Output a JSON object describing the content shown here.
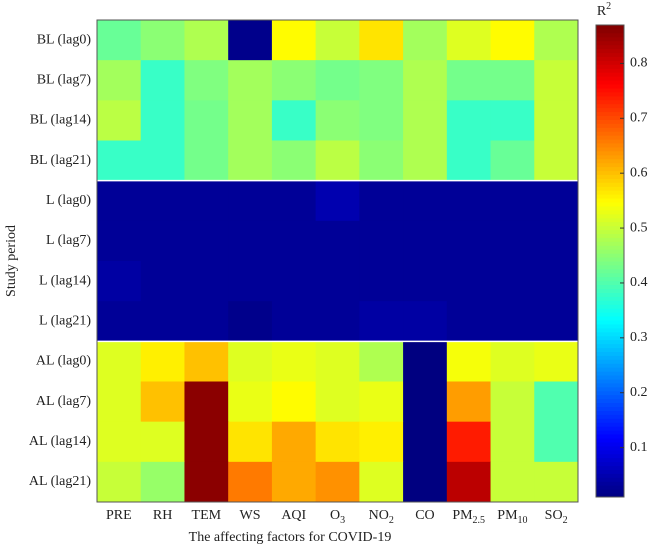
{
  "chart_data": {
    "type": "heatmap",
    "colorbar_title": {
      "text": "R",
      "sup": "2"
    },
    "xlabel": "The affecting factors for  COVID-19",
    "ylabel": "Study period",
    "colormap": "jet",
    "clim": [
      0.01,
      0.87
    ],
    "cticks": [
      0.1,
      0.2,
      0.3,
      0.4,
      0.5,
      0.6,
      0.7,
      0.8
    ],
    "x": [
      {
        "text": "PRE"
      },
      {
        "text": "RH"
      },
      {
        "text": "TEM"
      },
      {
        "text": "WS"
      },
      {
        "text": "AQI"
      },
      {
        "text": "O",
        "sub": "3"
      },
      {
        "text": "NO",
        "sub": "2"
      },
      {
        "text": "CO"
      },
      {
        "text": "PM",
        "sub": "2.5"
      },
      {
        "text": "PM",
        "sub": "10"
      },
      {
        "text": "SO",
        "sub": "2"
      }
    ],
    "y": [
      "BL (lag0)",
      "BL (lag7)",
      "BL (lag14)",
      "BL (lag21)",
      "L (lag0)",
      "L (lag7)",
      "L (lag14)",
      "L (lag21)",
      "AL (lag0)",
      "AL (lag7)",
      "AL (lag14)",
      "AL (lag21)"
    ],
    "z": [
      [
        0.42,
        0.45,
        0.48,
        0.02,
        0.55,
        0.5,
        0.57,
        0.47,
        0.52,
        0.55,
        0.48
      ],
      [
        0.47,
        0.38,
        0.44,
        0.47,
        0.45,
        0.43,
        0.44,
        0.48,
        0.43,
        0.43,
        0.5
      ],
      [
        0.49,
        0.38,
        0.43,
        0.47,
        0.38,
        0.45,
        0.44,
        0.48,
        0.38,
        0.38,
        0.5
      ],
      [
        0.38,
        0.38,
        0.43,
        0.47,
        0.45,
        0.49,
        0.45,
        0.48,
        0.38,
        0.42,
        0.5
      ],
      [
        0.03,
        0.03,
        0.03,
        0.03,
        0.03,
        0.05,
        0.03,
        0.03,
        0.03,
        0.03,
        0.03
      ],
      [
        0.03,
        0.03,
        0.03,
        0.03,
        0.03,
        0.03,
        0.03,
        0.03,
        0.03,
        0.03,
        0.03
      ],
      [
        0.04,
        0.03,
        0.03,
        0.03,
        0.03,
        0.03,
        0.03,
        0.03,
        0.03,
        0.03,
        0.03
      ],
      [
        0.03,
        0.03,
        0.03,
        0.02,
        0.03,
        0.03,
        0.04,
        0.04,
        0.03,
        0.03,
        0.03
      ],
      [
        0.52,
        0.56,
        0.6,
        0.52,
        0.53,
        0.52,
        0.48,
        0.01,
        0.54,
        0.52,
        0.53
      ],
      [
        0.52,
        0.6,
        0.86,
        0.53,
        0.55,
        0.52,
        0.53,
        0.01,
        0.63,
        0.5,
        0.4
      ],
      [
        0.52,
        0.52,
        0.86,
        0.57,
        0.62,
        0.57,
        0.56,
        0.01,
        0.74,
        0.5,
        0.4
      ],
      [
        0.5,
        0.46,
        0.86,
        0.66,
        0.62,
        0.64,
        0.52,
        0.01,
        0.82,
        0.5,
        0.5
      ]
    ]
  }
}
